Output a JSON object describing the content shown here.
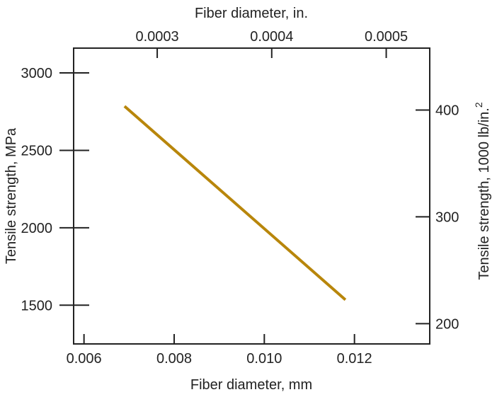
{
  "chart_data": {
    "type": "line",
    "title": "",
    "xlabel": "Fiber diameter, mm",
    "ylabel": "Tensile strength, MPa",
    "x_top_label": "Fiber diameter, in.",
    "y_right_label": "Tensile strength, 1000 lb/in.",
    "y_right_label_superscript": "2",
    "xlim": [
      0.00577,
      0.01367
    ],
    "ylim": [
      1250,
      3160
    ],
    "x_top_lim": [
      0.000227,
      0.000538
    ],
    "y_right_lim": [
      181,
      458
    ],
    "x_ticks": [
      0.006,
      0.008,
      0.01,
      0.012
    ],
    "x_tick_labels": [
      "0.006",
      "0.008",
      "0.010",
      "0.012"
    ],
    "y_ticks": [
      1500,
      2000,
      2500,
      3000
    ],
    "y_tick_labels": [
      "1500",
      "2000",
      "2500",
      "3000"
    ],
    "x_top_ticks": [
      0.0003,
      0.0004,
      0.0005
    ],
    "x_top_tick_labels": [
      "0.0003",
      "0.0004",
      "0.0005"
    ],
    "y_right_ticks": [
      200,
      300,
      400
    ],
    "y_right_tick_labels": [
      "200",
      "300",
      "400"
    ],
    "grid": false,
    "series": [
      {
        "x": [
          0.0069,
          0.0118
        ],
        "y": [
          2785,
          1535
        ],
        "color": "#B8860B"
      }
    ]
  }
}
